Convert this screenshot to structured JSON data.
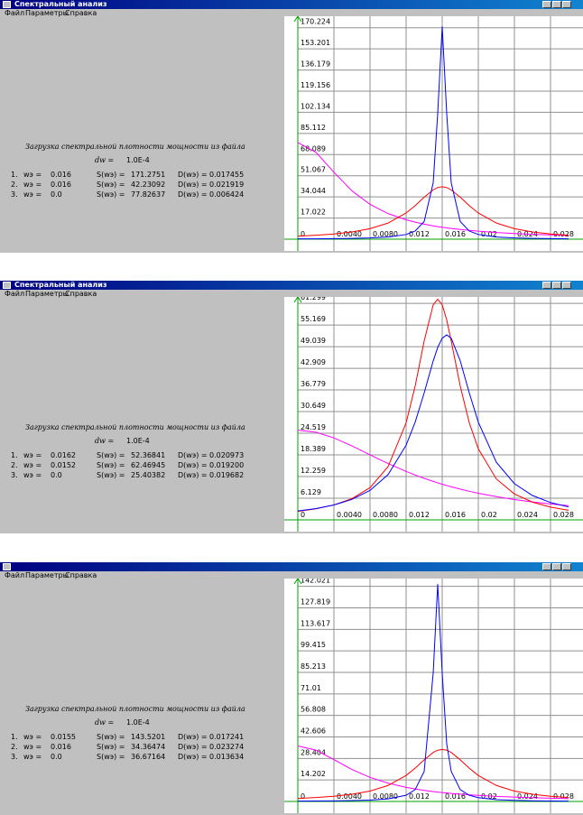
{
  "windows": [
    {
      "title": "Спектральный анализ",
      "menu": [
        "Файл",
        "Параметры",
        "Справка"
      ],
      "caption": "Загрузка спектральной плотности мощности из файла",
      "dw_label": "dw =",
      "dw_value": "1.0E-4",
      "rows": [
        {
          "index": "1.",
          "w_label": "wэ =",
          "w": "0.016",
          "s_label": "S(wэ) =",
          "s": "171.2751",
          "d_label": "D(wэ) =",
          "d": "0.017455"
        },
        {
          "index": "2.",
          "w_label": "wэ =",
          "w": "0.016",
          "s_label": "S(wэ) =",
          "s": "42.23092",
          "d_label": "D(wэ) =",
          "d": "0.021919"
        },
        {
          "index": "3.",
          "w_label": "wэ =",
          "w": "0.0",
          "s_label": "S(wэ) =",
          "s": "77.82637",
          "d_label": "D(wэ) =",
          "d": "0.006424"
        }
      ]
    },
    {
      "title": "Спектральный анализ",
      "menu": [
        "Файл",
        "Параметры",
        "Справка"
      ],
      "caption": "Загрузка спектральной плотности мощности из файла",
      "dw_label": "dw =",
      "dw_value": "1.0E-4",
      "rows": [
        {
          "index": "1.",
          "w_label": "wэ =",
          "w": "0.0162",
          "s_label": "S(wэ) =",
          "s": "52.36841",
          "d_label": "D(wэ) =",
          "d": "0.020973"
        },
        {
          "index": "2.",
          "w_label": "wэ =",
          "w": "0.0152",
          "s_label": "S(wэ) =",
          "s": "62.46945",
          "d_label": "D(wэ) =",
          "d": "0.019200"
        },
        {
          "index": "3.",
          "w_label": "wэ =",
          "w": "0.0",
          "s_label": "S(wэ) =",
          "s": "25.40382",
          "d_label": "D(wэ) =",
          "d": "0.019682"
        }
      ]
    },
    {
      "menu": [
        "Файл",
        "Параметры",
        "Справка"
      ],
      "caption": "Загрузка спектральной плотности мощности из файла",
      "dw_label": "dw =",
      "dw_value": "1.0E-4",
      "rows": [
        {
          "index": "1.",
          "w_label": "wэ =",
          "w": "0.0155",
          "s_label": "S(wэ) =",
          "s": "143.5201",
          "d_label": "D(wэ) =",
          "d": "0.017241"
        },
        {
          "index": "2.",
          "w_label": "wэ =",
          "w": "0.016",
          "s_label": "S(wэ) =",
          "s": "34.36474",
          "d_label": "D(wэ) =",
          "d": "0.023274"
        },
        {
          "index": "3.",
          "w_label": "wэ =",
          "w": "0.0",
          "s_label": "S(wэ) =",
          "s": "36.67164",
          "d_label": "D(wэ) =",
          "d": "0.013634"
        }
      ]
    }
  ],
  "chart_data": [
    {
      "type": "line",
      "grid": true,
      "xlim": [
        0,
        0.031
      ],
      "ylim": [
        0,
        178
      ],
      "xticks": [
        0,
        {
          "value": 0.004,
          "label": "0.0040"
        },
        {
          "value": 0.008,
          "label": "0.0080"
        },
        0.012,
        0.016,
        0.02,
        0.024,
        0.028
      ],
      "yticks": [
        17.022,
        34.044,
        51.067,
        68.089,
        85.112,
        102.134,
        119.156,
        136.179,
        153.201,
        170.224
      ],
      "x": [
        0,
        0.002,
        0.004,
        0.006,
        0.008,
        0.01,
        0.012,
        0.013,
        0.014,
        0.015,
        0.0155,
        0.016,
        0.0165,
        0.017,
        0.018,
        0.019,
        0.02,
        0.022,
        0.024,
        0.026,
        0.028,
        0.03
      ],
      "series": [
        {
          "color": "#ff00ff",
          "values": [
            77.8,
            70.0,
            53.9,
            38.9,
            28.0,
            20.6,
            15.6,
            13.7,
            12.1,
            10.7,
            10.1,
            9.59,
            9.09,
            8.62,
            7.78,
            7.05,
            6.43,
            5.39,
            4.58,
            3.93,
            3.41,
            2.99
          ]
        },
        {
          "color": "#ff0000",
          "values": [
            2.48,
            3.19,
            4.22,
            5.83,
            8.44,
            12.98,
            21.1,
            27.0,
            33.76,
            39.7,
            41.55,
            42.2,
            41.55,
            39.7,
            33.76,
            27.0,
            21.1,
            12.98,
            8.44,
            5.83,
            4.22,
            3.19
          ]
        },
        {
          "color": "#0000ff",
          "values": [
            0.24,
            0.31,
            0.43,
            0.61,
            0.96,
            1.7,
            3.77,
            6.59,
            14.2,
            45.3,
            101.1,
            171.3,
            101.1,
            45.3,
            14.2,
            6.59,
            3.77,
            1.7,
            0.96,
            0.61,
            0.43,
            0.31
          ]
        }
      ]
    },
    {
      "type": "line",
      "grid": true,
      "xlim": [
        0,
        0.031
      ],
      "ylim": [
        0,
        62.6
      ],
      "xticks": [
        0,
        {
          "value": 0.004,
          "label": "0.0040"
        },
        {
          "value": 0.008,
          "label": "0.0080"
        },
        0.012,
        0.016,
        0.02,
        0.024,
        0.028
      ],
      "yticks": [
        6.129,
        12.259,
        18.389,
        24.519,
        30.649,
        36.779,
        42.909,
        49.039,
        55.169,
        61.299
      ],
      "x": [
        0,
        0.002,
        0.004,
        0.006,
        0.008,
        0.01,
        0.012,
        0.013,
        0.014,
        0.015,
        0.0155,
        0.016,
        0.0165,
        0.017,
        0.018,
        0.019,
        0.02,
        0.022,
        0.024,
        0.026,
        0.028,
        0.03
      ],
      "series": [
        {
          "color": "#ff00ff",
          "values": [
            25.4,
            24.81,
            23.2,
            20.94,
            18.42,
            15.95,
            13.71,
            12.7,
            11.76,
            10.9,
            10.49,
            10.1,
            9.73,
            9.37,
            8.71,
            8.1,
            7.54,
            6.57,
            5.76,
            5.08,
            4.5,
            4.02
          ]
        },
        {
          "color": "#ff0000",
          "values": [
            2.4,
            3.13,
            4.23,
            6.01,
            9.12,
            15.05,
            27.46,
            37.86,
            50.62,
            60.89,
            62.47,
            60.89,
            56.59,
            50.62,
            37.86,
            27.46,
            20.11,
            11.57,
            7.33,
            5.01,
            3.62,
            2.73
          ]
        },
        {
          "color": "#0000ff",
          "values": [
            2.51,
            3.2,
            4.22,
            5.79,
            8.34,
            12.8,
            21.13,
            27.64,
            35.94,
            44.99,
            48.81,
            51.44,
            52.37,
            51.44,
            44.99,
            35.94,
            27.64,
            16.31,
            10.25,
            6.9,
            4.91,
            3.66
          ]
        }
      ]
    },
    {
      "type": "line",
      "grid": true,
      "xlim": [
        0,
        0.031
      ],
      "ylim": [
        0,
        146
      ],
      "xticks": [
        0,
        {
          "value": 0.004,
          "label": "0.0040"
        },
        {
          "value": 0.008,
          "label": "0.0080"
        },
        0.012,
        0.016,
        0.02,
        0.024,
        0.028
      ],
      "yticks": [
        14.202,
        28.404,
        42.606,
        56.808,
        71.01,
        85.213,
        99.415,
        113.617,
        127.819,
        142.021
      ],
      "x": [
        0,
        0.002,
        0.004,
        0.006,
        0.008,
        0.01,
        0.012,
        0.013,
        0.014,
        0.015,
        0.0155,
        0.016,
        0.0165,
        0.017,
        0.018,
        0.019,
        0.02,
        0.022,
        0.024,
        0.026,
        0.028,
        0.03
      ],
      "series": [
        {
          "color": "#ff00ff",
          "values": [
            36.67,
            33.9,
            27.64,
            21.14,
            15.9,
            12.06,
            9.31,
            8.24,
            7.33,
            6.56,
            6.21,
            5.89,
            5.59,
            5.32,
            4.82,
            4.38,
            4.0,
            3.37,
            2.87,
            2.48,
            2.16,
            1.89
          ]
        },
        {
          "color": "#ff0000",
          "values": [
            2.02,
            2.59,
            3.44,
            4.74,
            6.87,
            10.57,
            17.18,
            21.99,
            27.49,
            32.34,
            33.83,
            34.36,
            33.83,
            32.34,
            27.49,
            21.99,
            17.18,
            10.57,
            6.87,
            4.74,
            3.44,
            2.59
          ]
        },
        {
          "color": "#0000ff",
          "values": [
            0.215,
            0.283,
            0.39,
            0.57,
            0.91,
            1.69,
            4.09,
            7.8,
            19.8,
            84.7,
            143.52,
            84.7,
            38.0,
            19.8,
            7.8,
            4.09,
            2.51,
            1.22,
            0.71,
            0.47,
            0.33,
            0.25
          ]
        }
      ]
    }
  ]
}
